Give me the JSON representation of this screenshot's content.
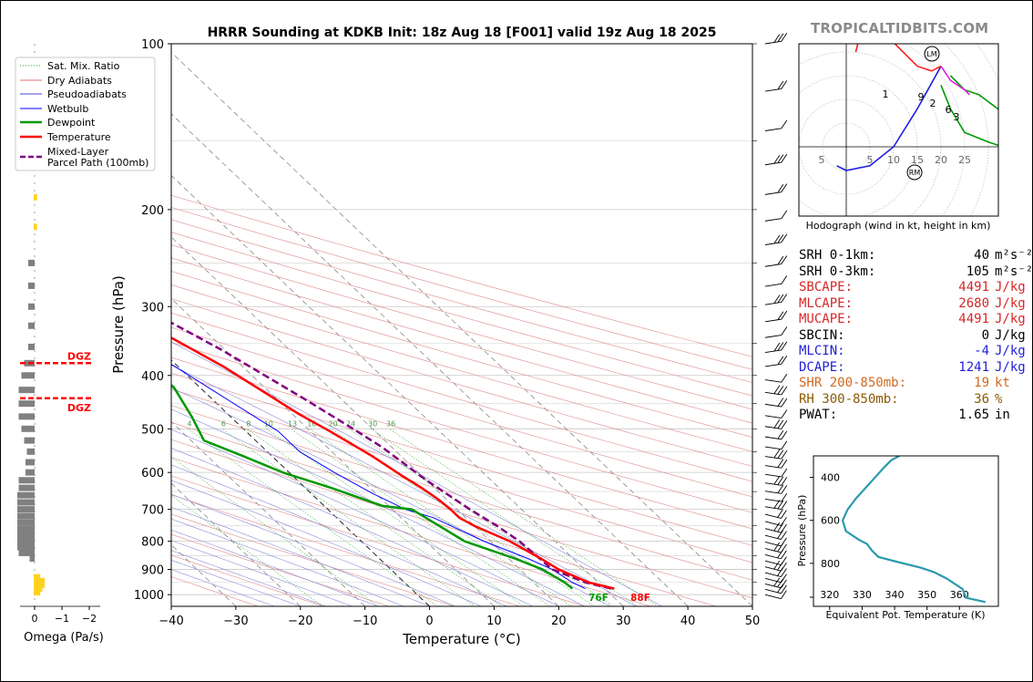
{
  "chart_data": {
    "type": "skew-t sounding",
    "title": "HRRR Sounding at KDKB Init: 18z Aug 18 [F001] valid 19z Aug 18 2025",
    "brand": "TROPICALTIDBITS.COM",
    "xlabel": "Temperature (°C)",
    "ylabel": "Pressure (hPa)",
    "xlim": [
      -40,
      50
    ],
    "pressure_ticks": [
      100,
      200,
      300,
      400,
      500,
      600,
      700,
      800,
      900,
      1000
    ],
    "temp_ticks": [
      -40,
      -30,
      -20,
      -10,
      0,
      10,
      20,
      30,
      40,
      50
    ],
    "legend": {
      "placement": "top-left",
      "entries": [
        {
          "label": "Sat. Mix. Ratio",
          "color": "#2ca02c",
          "style": "dotted"
        },
        {
          "label": "Dry Adiabats",
          "color": "#e07070",
          "style": "solid"
        },
        {
          "label": "Pseudoadiabats",
          "color": "#4a4ad8",
          "style": "solid"
        },
        {
          "label": "Wetbulb",
          "color": "#0000ff",
          "style": "solid"
        },
        {
          "label": "Dewpoint",
          "color": "#009900",
          "style": "solid"
        },
        {
          "label": "Temperature",
          "color": "#ff0000",
          "style": "solid"
        },
        {
          "label": "Mixed-Layer\nParcel Path (100mb)",
          "color": "#800080",
          "style": "dashed"
        }
      ]
    },
    "mixing_ratio_labels": [
      "1",
      "2",
      "4",
      "6",
      "8",
      "10",
      "13",
      "16",
      "20",
      "24",
      "30",
      "36"
    ],
    "surface_labels": {
      "temperature": "88F",
      "dewpoint": "76F"
    },
    "series": [
      {
        "name": "Temperature",
        "color": "#ff0000",
        "points": [
          [
            31.5,
            975
          ],
          [
            28.5,
            950
          ],
          [
            26,
            900
          ],
          [
            25,
            860
          ],
          [
            23,
            800
          ],
          [
            20,
            750
          ],
          [
            19,
            725
          ],
          [
            19,
            700
          ],
          [
            18.7,
            670
          ],
          [
            18,
            640
          ],
          [
            17,
            610
          ],
          [
            15.5,
            560
          ],
          [
            13,
            505
          ],
          [
            11,
            470
          ],
          [
            9,
            425
          ],
          [
            7,
            385
          ],
          [
            3.5,
            340
          ],
          [
            0,
            300
          ],
          [
            -4,
            265
          ],
          [
            -8,
            230
          ],
          [
            -11,
            200
          ],
          [
            -13.5,
            178
          ],
          [
            -16,
            150
          ],
          [
            -14,
            130
          ],
          [
            -11.5,
            113
          ],
          [
            -2.5,
            100
          ]
        ]
      },
      {
        "name": "Dewpoint",
        "color": "#009900",
        "points": [
          [
            25,
            975
          ],
          [
            24.8,
            950
          ],
          [
            23.5,
            900
          ],
          [
            21,
            860
          ],
          [
            16,
            800
          ],
          [
            13,
            700
          ],
          [
            9,
            690
          ],
          [
            4,
            640
          ],
          [
            -1,
            600
          ],
          [
            -4.5,
            560
          ],
          [
            -8,
            525
          ],
          [
            -6,
            475
          ],
          [
            -4,
            420
          ],
          [
            -4.5,
            400
          ],
          [
            -9,
            380
          ],
          [
            -15.5,
            358
          ],
          [
            -16,
            320
          ],
          [
            -16,
            295
          ],
          [
            -19,
            275
          ],
          [
            -17,
            255
          ],
          [
            -14.5,
            225
          ],
          [
            -15,
            200
          ],
          [
            -19,
            180
          ],
          [
            -21.5,
            162
          ],
          [
            -23,
            145
          ],
          [
            -23,
            115
          ],
          [
            -22,
            100
          ]
        ]
      },
      {
        "name": "Wetbulb",
        "color": "#0000ff",
        "points": [
          [
            27,
            975
          ],
          [
            26,
            950
          ],
          [
            25,
            900
          ],
          [
            23,
            860
          ],
          [
            19,
            800
          ],
          [
            15,
            725
          ],
          [
            12,
            700
          ],
          [
            9.5,
            655
          ],
          [
            7,
            600
          ],
          [
            5,
            550
          ],
          [
            5,
            505
          ],
          [
            3.5,
            470
          ],
          [
            1.5,
            425
          ],
          [
            -0.5,
            385
          ],
          [
            -4,
            340
          ],
          [
            -7,
            300
          ],
          [
            -10,
            265
          ],
          [
            -12,
            240
          ],
          [
            -14,
            210
          ]
        ]
      },
      {
        "name": "Mixed-Layer Parcel Path (100mb)",
        "color": "#800080",
        "points": [
          [
            31,
            975
          ],
          [
            28,
            950
          ],
          [
            25,
            900
          ],
          [
            24.5,
            800
          ],
          [
            23.5,
            750
          ],
          [
            22,
            700
          ],
          [
            20,
            620
          ],
          [
            18.5,
            540
          ],
          [
            17,
            500
          ],
          [
            14.5,
            445
          ],
          [
            12,
            400
          ],
          [
            9.5,
            360
          ],
          [
            6,
            320
          ],
          [
            1,
            280
          ],
          [
            -4,
            245
          ],
          [
            -11,
            200
          ],
          [
            -17,
            160
          ],
          [
            -21.5,
            130
          ],
          [
            -23.5,
            110
          ],
          [
            -24.5,
            100
          ]
        ]
      }
    ],
    "wind_barbs": {
      "side": "right",
      "count": 42
    },
    "omega": {
      "xlabel": "Omega (Pa/s)",
      "ticks": [
        "0",
        "−1",
        "−2"
      ],
      "dgz_label": "DGZ",
      "dgz_pressures": [
        380,
        440
      ],
      "bars": [
        {
          "p": 990,
          "v": -0.3
        },
        {
          "p": 975,
          "v": -0.4
        },
        {
          "p": 960,
          "v": -0.5
        },
        {
          "p": 945,
          "v": -0.5
        },
        {
          "p": 930,
          "v": -0.3
        },
        {
          "p": 860,
          "v": 0.1
        },
        {
          "p": 840,
          "v": 0.9
        },
        {
          "p": 820,
          "v": 1.0
        },
        {
          "p": 800,
          "v": 1.0
        },
        {
          "p": 780,
          "v": 1.0
        },
        {
          "p": 760,
          "v": 1.0
        },
        {
          "p": 740,
          "v": 1.0
        },
        {
          "p": 720,
          "v": 1.0
        },
        {
          "p": 700,
          "v": 1.0
        },
        {
          "p": 680,
          "v": 1.0
        },
        {
          "p": 660,
          "v": 1.0
        },
        {
          "p": 640,
          "v": 0.9
        },
        {
          "p": 620,
          "v": 0.9
        },
        {
          "p": 600,
          "v": 0.4
        },
        {
          "p": 575,
          "v": 0.4
        },
        {
          "p": 550,
          "v": 0.3
        },
        {
          "p": 525,
          "v": 0.5
        },
        {
          "p": 500,
          "v": 0.7
        },
        {
          "p": 475,
          "v": 0.9
        },
        {
          "p": 450,
          "v": 0.9
        },
        {
          "p": 425,
          "v": 0.9
        },
        {
          "p": 400,
          "v": 0.7
        },
        {
          "p": 380,
          "v": 0.5
        },
        {
          "p": 355,
          "v": 0.2
        },
        {
          "p": 325,
          "v": 0.2
        },
        {
          "p": 300,
          "v": 0.2
        },
        {
          "p": 275,
          "v": 0.2
        },
        {
          "p": 250,
          "v": 0.2
        },
        {
          "p": 215,
          "v": -0.15
        },
        {
          "p": 190,
          "v": -0.15
        },
        {
          "p": 165,
          "v": -0.1
        },
        {
          "p": 145,
          "v": -0.1
        },
        {
          "p": 125,
          "v": -0.05
        }
      ]
    },
    "hodograph": {
      "caption": "Hodograph (wind in kt, height in km)",
      "ring_labels": [
        "5",
        "5",
        "10",
        "15",
        "20",
        "25"
      ],
      "height_labels": [
        "1",
        "9",
        "2",
        "6",
        "3"
      ],
      "markers": [
        "LM",
        "RM"
      ],
      "points_red": [
        [
          2,
          20
        ],
        [
          3,
          24
        ],
        [
          5,
          24
        ],
        [
          10,
          22
        ],
        [
          15,
          17
        ],
        [
          18,
          16
        ],
        [
          20,
          17
        ]
      ],
      "points_magenta": [
        [
          20,
          17
        ],
        [
          22,
          14
        ],
        [
          25,
          12
        ],
        [
          26,
          11
        ]
      ],
      "points_green": [
        [
          22,
          15
        ],
        [
          25,
          12
        ],
        [
          28,
          11
        ],
        [
          32,
          8
        ],
        [
          35,
          5
        ],
        [
          35,
          -1
        ],
        [
          33,
          0
        ],
        [
          30,
          1
        ],
        [
          25,
          3
        ],
        [
          22,
          8
        ],
        [
          20,
          13
        ]
      ],
      "points_blue": [
        [
          20,
          17
        ],
        [
          15,
          8
        ],
        [
          10,
          0
        ],
        [
          5,
          -4
        ],
        [
          0,
          -5
        ],
        [
          -2,
          -4
        ]
      ]
    },
    "theta_e": {
      "xlabel": "Equivalent Pot. Temperature (K)",
      "ylabel": "Pressure (hPa)",
      "xticks": [
        320,
        330,
        340,
        350,
        360
      ],
      "yticks": [
        400,
        600,
        800
      ],
      "xlim": [
        315,
        372
      ],
      "ylim": [
        300,
        1000
      ],
      "points": [
        [
          341.5,
          300
        ],
        [
          339,
          320
        ],
        [
          337,
          350
        ],
        [
          334,
          400
        ],
        [
          331,
          450
        ],
        [
          328,
          500
        ],
        [
          325.5,
          550
        ],
        [
          324,
          600
        ],
        [
          325,
          650
        ],
        [
          329,
          690
        ],
        [
          331.5,
          710
        ],
        [
          333,
          740
        ],
        [
          335,
          770
        ],
        [
          340,
          790
        ],
        [
          348,
          820
        ],
        [
          352,
          840
        ],
        [
          356,
          870
        ],
        [
          358,
          890
        ],
        [
          361,
          920
        ],
        [
          362,
          960
        ],
        [
          368,
          980
        ]
      ]
    }
  },
  "stats": [
    {
      "key": "SRH 0-1km:",
      "value": "40",
      "unit": "m²s⁻²",
      "color": "#000000"
    },
    {
      "key": "SRH 0-3km:",
      "value": "105",
      "unit": "m²s⁻²",
      "color": "#000000"
    },
    {
      "key": "SBCAPE:",
      "value": "4491",
      "unit": "J/kg",
      "color": "#d62728"
    },
    {
      "key": "MLCAPE:",
      "value": "2680",
      "unit": "J/kg",
      "color": "#d62728"
    },
    {
      "key": "MUCAPE:",
      "value": "4491",
      "unit": "J/kg",
      "color": "#d62728"
    },
    {
      "key": "SBCIN:",
      "value": "0",
      "unit": "J/kg",
      "color": "#000000"
    },
    {
      "key": "MLCIN:",
      "value": "-4",
      "unit": "J/kg",
      "color": "#1f1fd6"
    },
    {
      "key": "DCAPE:",
      "value": "1241",
      "unit": "J/kg",
      "color": "#1f1fd6"
    },
    {
      "key": "SHR 200-850mb:",
      "value": "19",
      "unit": "kt",
      "color": "#d2691e"
    },
    {
      "key": "RH 300-850mb:",
      "value": "36",
      "unit": "%",
      "color": "#8b5a00"
    },
    {
      "key": "PWAT:",
      "value": "1.65",
      "unit": "in",
      "color": "#000000"
    }
  ]
}
